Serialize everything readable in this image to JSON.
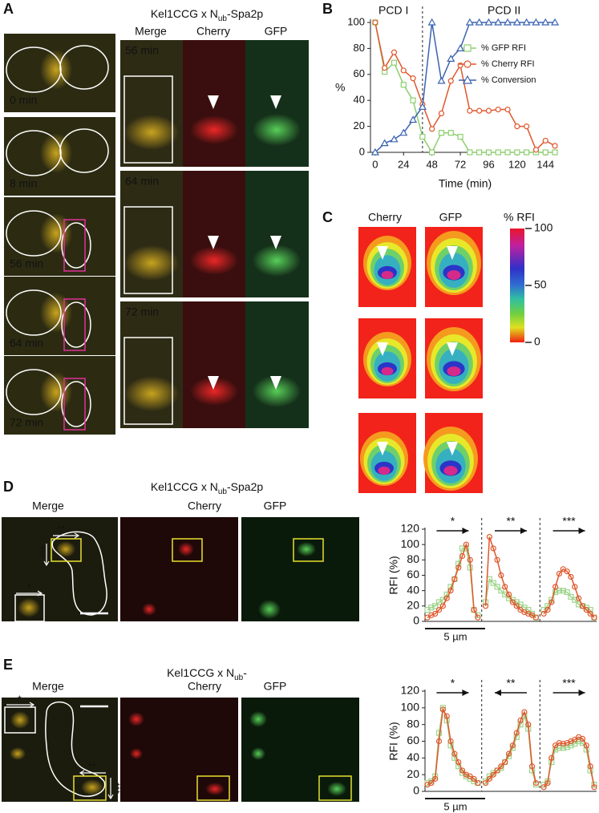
{
  "panel_labels": [
    "A",
    "B",
    "C",
    "D",
    "E"
  ],
  "panel_a": {
    "title_parts": [
      "Kel1CCG x N",
      "ub",
      "-Spa2p"
    ],
    "columns": [
      "Merge",
      "Cherry",
      "GFP"
    ],
    "left_times": [
      "0 min",
      "8 min",
      "56 min",
      "64 min",
      "72 min"
    ],
    "merge_times": [
      "56 min",
      "64 min",
      "72 min"
    ]
  },
  "panel_c": {
    "columns": [
      "Cherry",
      "GFP"
    ],
    "colorbar_title": "% RFI",
    "colorbar_ticks": [
      100,
      50,
      0
    ]
  },
  "panel_d": {
    "title_parts": [
      "Kel1CCG x N",
      "ub",
      "-Spa2p"
    ],
    "columns": [
      "Merge",
      "Cherry",
      "GFP"
    ],
    "image_marks": [
      "**",
      "***",
      "*"
    ]
  },
  "panel_e": {
    "title_parts": [
      "Kel1CCG x N",
      "ub",
      "-"
    ],
    "columns": [
      "Merge",
      "Cherry",
      "GFP"
    ],
    "image_marks": [
      "*",
      "**",
      "***"
    ]
  },
  "chart_data": [
    {
      "type": "line",
      "x_label": "Time (min)",
      "y_label": "%",
      "annotations": [
        "PCD I",
        "PCD II"
      ],
      "divider": 40,
      "x": [
        0,
        8,
        16,
        24,
        32,
        40,
        48,
        56,
        64,
        72,
        80,
        88,
        96,
        104,
        112,
        120,
        128,
        136,
        144,
        152
      ],
      "xlim": [
        -4,
        154
      ],
      "ylim": [
        0,
        100
      ],
      "xticks": [
        0,
        24,
        48,
        72,
        96,
        120,
        144
      ],
      "yticks": [
        0,
        20,
        40,
        60,
        80,
        100
      ],
      "series": [
        {
          "name": "% GFP RFI",
          "color": "#8ccf6e",
          "marker": "square",
          "values": [
            100,
            62,
            69,
            52,
            40,
            12,
            0,
            15,
            15,
            12,
            0,
            0,
            0,
            0,
            0,
            0,
            0,
            0,
            0,
            0
          ]
        },
        {
          "name": "% Cherry RFI",
          "color": "#e0562b",
          "marker": "circle",
          "values": [
            100,
            65,
            77,
            63,
            57,
            37,
            18,
            30,
            55,
            67,
            32,
            32,
            32,
            33,
            33,
            20,
            20,
            2,
            9,
            5
          ]
        },
        {
          "name": "% Conversion",
          "color": "#3a63b0",
          "marker": "triangle",
          "values": [
            0,
            7,
            10,
            15,
            25,
            35,
            100,
            55,
            72,
            80,
            100,
            100,
            100,
            100,
            100,
            100,
            100,
            100,
            100,
            100
          ]
        }
      ]
    },
    {
      "type": "profile",
      "y_label": "RFI (%)",
      "ylim": [
        0,
        120
      ],
      "yticks": [
        0,
        20,
        40,
        60,
        80,
        100,
        120
      ],
      "segment_labels": [
        "*",
        "**",
        "***"
      ],
      "segment_directions": [
        "right",
        "right",
        "right"
      ],
      "scale_label": "5 µm",
      "series": [
        {
          "color": "#9fd48c",
          "marker": "square",
          "values": [
            15,
            18,
            20,
            25,
            28,
            35,
            45,
            55,
            75,
            95,
            95,
            70,
            15,
            8,
            null,
            25,
            55,
            50,
            45,
            40,
            35,
            30,
            28,
            25,
            22,
            18,
            15,
            10,
            5,
            null,
            15,
            20,
            28,
            38,
            40,
            40,
            38,
            32,
            28,
            22,
            20,
            18,
            15,
            5
          ]
        },
        {
          "color": "#e0562b",
          "marker": "circle",
          "values": [
            5,
            8,
            10,
            15,
            20,
            30,
            40,
            55,
            70,
            85,
            100,
            80,
            15,
            5,
            null,
            20,
            110,
            95,
            80,
            60,
            45,
            35,
            25,
            20,
            15,
            12,
            10,
            8,
            5,
            null,
            10,
            15,
            25,
            45,
            62,
            68,
            65,
            58,
            45,
            30,
            20,
            15,
            10,
            5
          ]
        }
      ]
    },
    {
      "type": "profile",
      "y_label": "RFI (%)",
      "ylim": [
        0,
        120
      ],
      "yticks": [
        0,
        20,
        40,
        60,
        80,
        100,
        120
      ],
      "segment_labels": [
        "*",
        "**",
        "***"
      ],
      "segment_directions": [
        "right",
        "left",
        "right"
      ],
      "scale_label": "5 µm",
      "series": [
        {
          "color": "#9fd48c",
          "marker": "square",
          "values": [
            10,
            12,
            18,
            70,
            100,
            85,
            55,
            40,
            30,
            22,
            18,
            15,
            12,
            10,
            null,
            12,
            18,
            22,
            25,
            28,
            35,
            42,
            52,
            65,
            80,
            90,
            75,
            25,
            8,
            null,
            8,
            12,
            35,
            50,
            52,
            52,
            53,
            55,
            57,
            60,
            58,
            50,
            25,
            8
          ]
        },
        {
          "color": "#e0562b",
          "marker": "circle",
          "values": [
            8,
            10,
            15,
            60,
            98,
            90,
            60,
            45,
            35,
            25,
            20,
            18,
            15,
            10,
            null,
            10,
            15,
            20,
            25,
            30,
            35,
            45,
            55,
            70,
            85,
            95,
            80,
            30,
            10,
            null,
            5,
            10,
            40,
            55,
            58,
            57,
            58,
            60,
            62,
            65,
            63,
            55,
            30,
            5
          ]
        }
      ]
    }
  ]
}
